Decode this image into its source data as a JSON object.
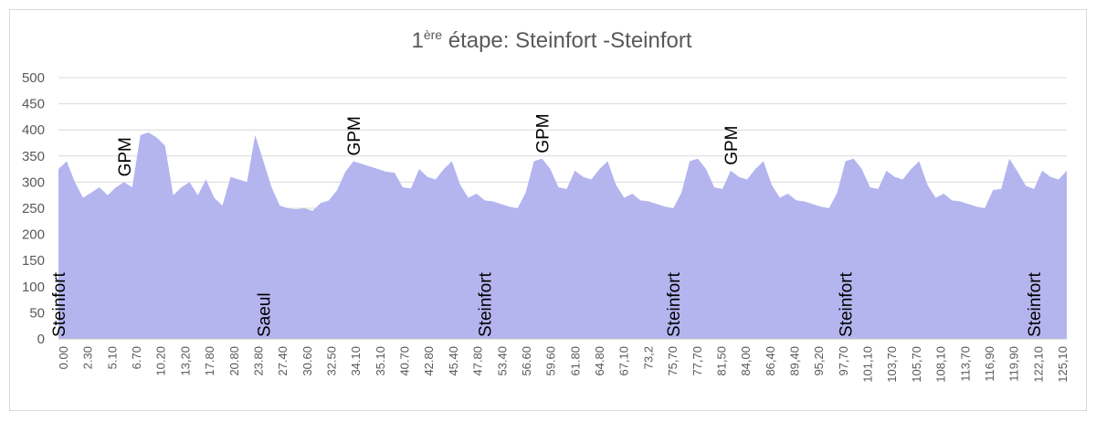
{
  "chart_data": {
    "type": "area",
    "title": {
      "prefix": "1",
      "sup": "ère",
      "rest": " étape: Steinfort -Steinfort"
    },
    "xlabel": "",
    "ylabel": "",
    "ylim": [
      0,
      500
    ],
    "yticks": [
      0,
      50,
      100,
      150,
      200,
      250,
      300,
      350,
      400,
      450,
      500
    ],
    "grid": true,
    "legend": "none",
    "color": "#b4b4ef",
    "x_tick_labels": [
      "0.00",
      "2.30",
      "5.10",
      "6.70",
      "10.20",
      "13,20",
      "17.80",
      "20.80",
      "23.80",
      "27.40",
      "30.60",
      "32.50",
      "34.10",
      "35.10",
      "40.70",
      "42.80",
      "45.40",
      "47.80",
      "53.40",
      "56.60",
      "59.60",
      "61.80",
      "64.80",
      "67,10",
      "73,2",
      "75,70",
      "77,70",
      "81,50",
      "84,00",
      "86,40",
      "89,40",
      "95,20",
      "97,70",
      "101,10",
      "103,70",
      "105,70",
      "108,10",
      "113,70",
      "116,90",
      "119,90",
      "122,10",
      "125,10"
    ],
    "values": [
      325,
      340,
      300,
      270,
      280,
      290,
      275,
      290,
      300,
      290,
      390,
      395,
      385,
      370,
      275,
      290,
      300,
      275,
      305,
      270,
      255,
      310,
      305,
      300,
      390,
      340,
      290,
      255,
      250,
      248,
      250,
      245,
      260,
      265,
      285,
      320,
      340,
      335,
      330,
      325,
      320,
      318,
      290,
      288,
      325,
      310,
      305,
      325,
      340,
      295,
      270,
      278,
      265,
      263,
      258,
      253,
      250,
      280,
      340,
      345,
      325,
      290,
      287,
      322,
      310,
      305,
      325,
      340,
      295,
      270,
      278,
      265,
      263,
      258,
      253,
      250,
      280,
      340,
      345,
      325,
      290,
      287,
      322,
      310,
      305,
      325,
      340,
      295,
      270,
      278,
      265,
      263,
      258,
      253,
      250,
      280,
      340,
      345,
      325,
      290,
      287,
      322,
      310,
      305,
      325,
      340,
      295,
      270,
      278,
      265,
      263,
      258,
      253,
      250,
      285,
      287,
      345,
      320,
      293,
      287,
      322,
      310,
      305,
      322
    ],
    "annotations": [
      {
        "text": "GPM",
        "index": 8,
        "anchor": "top"
      },
      {
        "text": "GPM",
        "index": 36,
        "anchor": "top"
      },
      {
        "text": "GPM",
        "index": 59,
        "anchor": "top"
      },
      {
        "text": "GPM",
        "index": 82,
        "anchor": "top"
      },
      {
        "text": "Steinfort",
        "index": 0,
        "anchor": "bottom"
      },
      {
        "text": "Saeul",
        "index": 25,
        "anchor": "bottom"
      },
      {
        "text": "Steinfort",
        "index": 52,
        "anchor": "bottom"
      },
      {
        "text": "Steinfort",
        "index": 75,
        "anchor": "bottom"
      },
      {
        "text": "Steinfort",
        "index": 96,
        "anchor": "bottom"
      },
      {
        "text": "Steinfort",
        "index": 119,
        "anchor": "bottom"
      },
      {
        "text": "Steinfort",
        "index": 141,
        "anchor": "bottom"
      }
    ]
  }
}
